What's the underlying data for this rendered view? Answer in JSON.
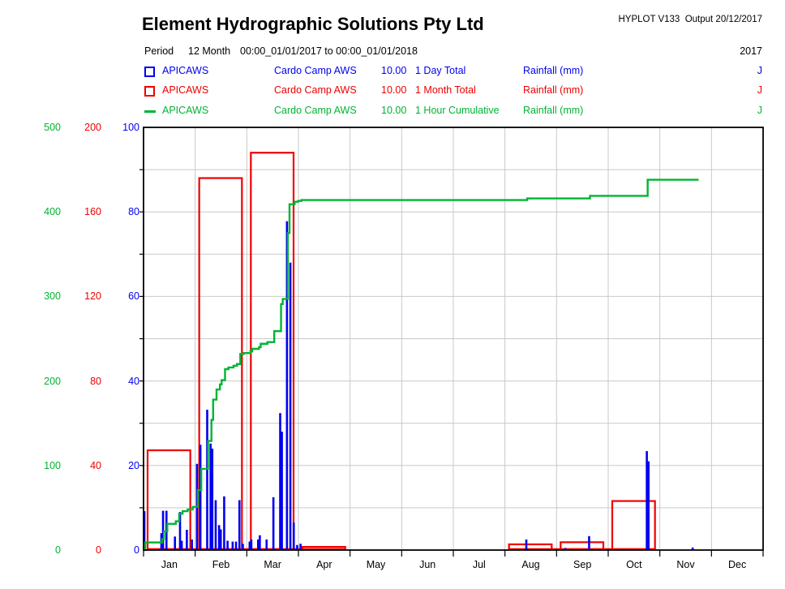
{
  "header": {
    "title": "Element Hydrographic Solutions Pty Ltd",
    "hyplot": "HYPLOT V133  Output 20/12/2017",
    "period_label": "Period",
    "period_value": "12 Month",
    "period_range": "00:00_01/01/2017 to 00:00_01/01/2018",
    "year": "2017"
  },
  "legend": {
    "rows": [
      {
        "swatch": "square",
        "color": "#0000ee",
        "station": "APICAWS",
        "site": "Cardo Camp AWS",
        "value": "10.00",
        "interval": "1 Day Total",
        "parameter": "Rainfall (mm)",
        "flag": "J"
      },
      {
        "swatch": "square",
        "color": "#ee0000",
        "station": "APICAWS",
        "site": "Cardo Camp AWS",
        "value": "10.00",
        "interval": "1 Month Total",
        "parameter": "Rainfall (mm)",
        "flag": "J"
      },
      {
        "swatch": "dash",
        "color": "#00b432",
        "station": "APICAWS",
        "site": "Cardo Camp AWS",
        "value": "10.00",
        "interval": "1 Hour Cumulative",
        "parameter": "Rainfall (mm)",
        "flag": "J"
      }
    ]
  },
  "chart_data": {
    "type": "combo",
    "title": "Element Hydrographic Solutions Pty Ltd",
    "categories": [
      "Jan",
      "Feb",
      "Mar",
      "Apr",
      "May",
      "Jun",
      "Jul",
      "Aug",
      "Sep",
      "Oct",
      "Nov",
      "Dec"
    ],
    "year": "2017",
    "grid": true,
    "colors": {
      "bar_blue": "#0000ee",
      "box_red": "#ee0000",
      "line_green": "#00b432",
      "grid": "#c9c9c9",
      "axis": "#000000"
    },
    "axes": [
      {
        "id": "green",
        "series": "1 Hour Cumulative Rainfall (mm)",
        "color": "#00b432",
        "min": 0,
        "max": 500,
        "ticks": [
          0,
          100,
          200,
          300,
          400,
          500
        ]
      },
      {
        "id": "red",
        "series": "1 Month Total Rainfall (mm)",
        "color": "#ee0000",
        "min": 0,
        "max": 200,
        "ticks": [
          0,
          40,
          80,
          120,
          160,
          200
        ]
      },
      {
        "id": "blue",
        "series": "1 Day Total Rainfall (mm)",
        "color": "#0000ee",
        "min": 0,
        "max": 100,
        "ticks": [
          0,
          20,
          40,
          60,
          80,
          100
        ]
      }
    ],
    "series": [
      {
        "name": "1 Day Total",
        "type": "bar",
        "axis": "blue",
        "unit": "mm",
        "points_day_mm": [
          [
            1,
            9.2
          ],
          [
            11,
            4.0
          ],
          [
            12,
            9.3
          ],
          [
            14,
            9.3
          ],
          [
            19,
            3.2
          ],
          [
            22,
            9.0
          ],
          [
            23,
            2.2
          ],
          [
            26,
            4.8
          ],
          [
            29,
            2.5
          ],
          [
            32,
            20.4
          ],
          [
            34,
            24.9
          ],
          [
            38,
            33.2
          ],
          [
            40,
            25.2
          ],
          [
            41,
            24.0
          ],
          [
            43,
            11.8
          ],
          [
            45,
            5.9
          ],
          [
            46,
            4.9
          ],
          [
            48,
            12.7
          ],
          [
            50,
            2.2
          ],
          [
            53,
            2.0
          ],
          [
            55,
            2.0
          ],
          [
            57,
            11.8
          ],
          [
            59,
            1.5
          ],
          [
            63,
            2.0
          ],
          [
            64,
            2.5
          ],
          [
            68,
            2.5
          ],
          [
            69,
            3.5
          ],
          [
            73,
            2.5
          ],
          [
            77,
            12.5
          ],
          [
            81,
            32.4
          ],
          [
            82,
            28.0
          ],
          [
            85,
            77.8
          ],
          [
            87,
            68.0
          ],
          [
            89,
            6.5
          ],
          [
            91,
            1.2
          ],
          [
            93,
            1.5
          ],
          [
            226,
            2.5
          ],
          [
            249,
            0.5
          ],
          [
            263,
            3.3
          ],
          [
            297,
            23.4
          ],
          [
            298,
            21.0
          ],
          [
            324,
            0.6
          ]
        ]
      },
      {
        "name": "1 Month Total",
        "type": "outline-bar",
        "axis": "red",
        "unit": "mm",
        "monthly_totals": [
          47.2,
          176,
          188,
          1.5,
          0,
          0,
          0,
          2.7,
          3.7,
          23.2,
          0,
          0
        ]
      },
      {
        "name": "1 Hour Cumulative",
        "type": "step-line",
        "axis": "green",
        "unit": "mm",
        "points_day_mm": [
          [
            0,
            0
          ],
          [
            1,
            9
          ],
          [
            11,
            13
          ],
          [
            12,
            22
          ],
          [
            14,
            31
          ],
          [
            19,
            34
          ],
          [
            21,
            43
          ],
          [
            23,
            46
          ],
          [
            26,
            48
          ],
          [
            29,
            51
          ],
          [
            32,
            71
          ],
          [
            34,
            96
          ],
          [
            38,
            129
          ],
          [
            40,
            154
          ],
          [
            41,
            178
          ],
          [
            43,
            190
          ],
          [
            45,
            196
          ],
          [
            46,
            201
          ],
          [
            48,
            214
          ],
          [
            50,
            216
          ],
          [
            53,
            218
          ],
          [
            55,
            220
          ],
          [
            57,
            232
          ],
          [
            59,
            233
          ],
          [
            63,
            235
          ],
          [
            64,
            238
          ],
          [
            68,
            240
          ],
          [
            69,
            244
          ],
          [
            73,
            246
          ],
          [
            77,
            259
          ],
          [
            81,
            291
          ],
          [
            82,
            297
          ],
          [
            85,
            375
          ],
          [
            86,
            409
          ],
          [
            89,
            412
          ],
          [
            91,
            413
          ],
          [
            93,
            414
          ],
          [
            226,
            416
          ],
          [
            263,
            419
          ],
          [
            297,
            438
          ],
          [
            327,
            438
          ]
        ]
      }
    ]
  }
}
